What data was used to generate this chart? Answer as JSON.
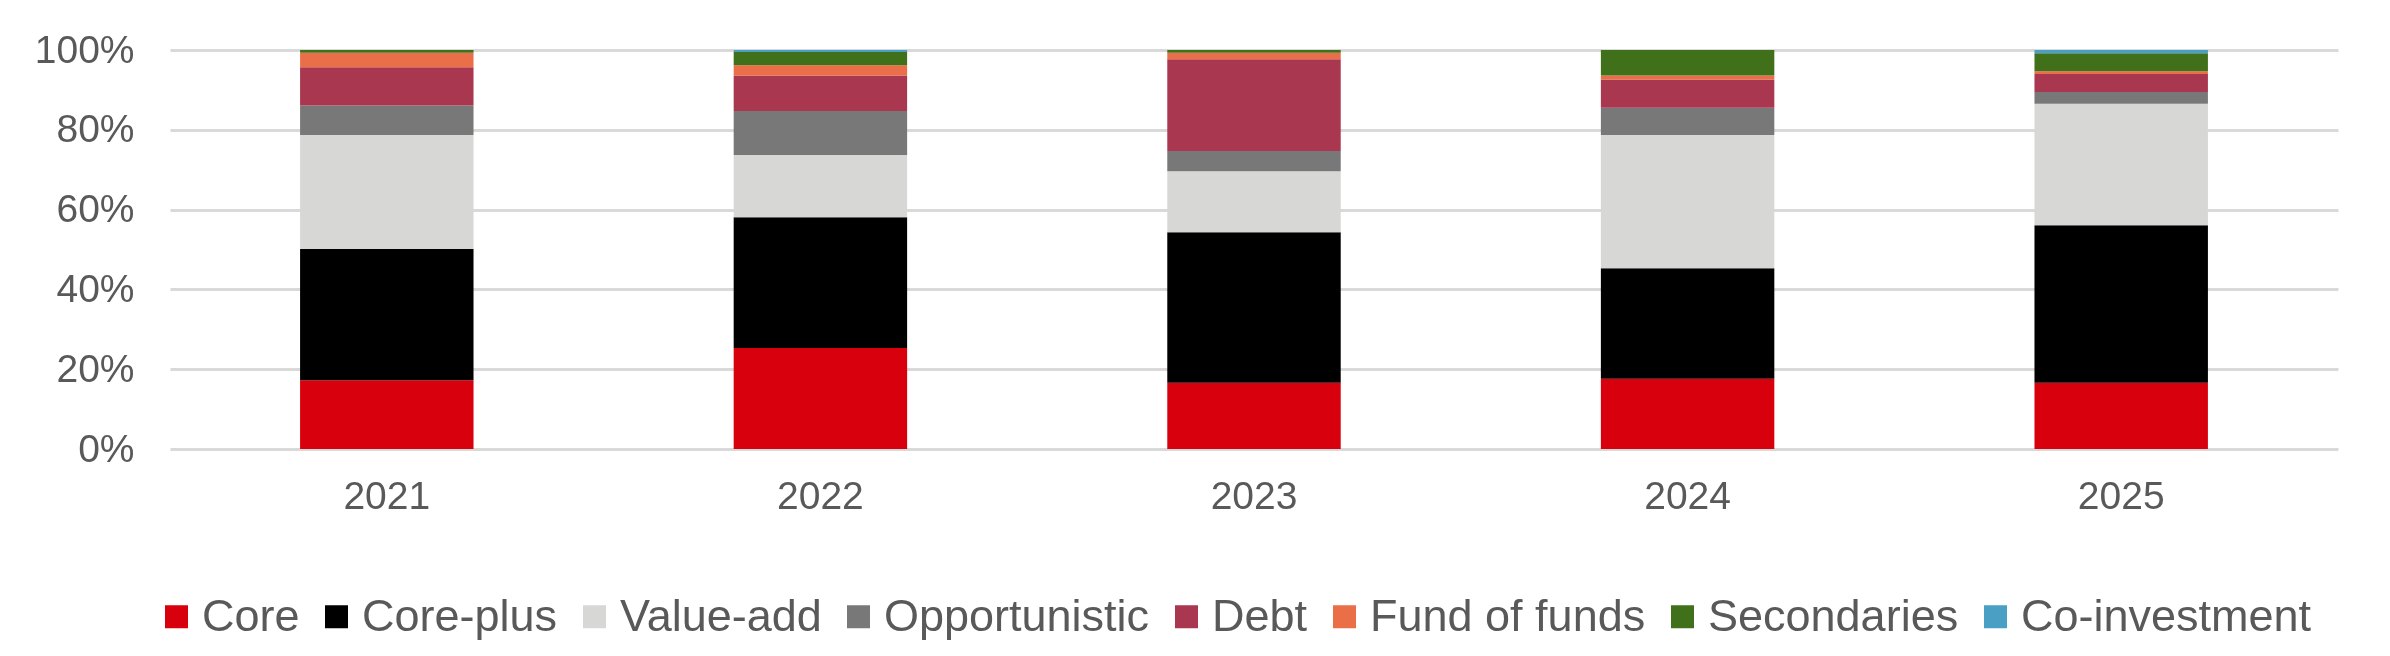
{
  "chart_data": {
    "type": "bar",
    "stacked": true,
    "grid": "y",
    "legend": "bottom",
    "categories": [
      "2021",
      "2022",
      "2023",
      "2024",
      "2025"
    ],
    "ylim": [
      0,
      100
    ],
    "yticks": [
      {
        "value": 0,
        "label": "0%"
      },
      {
        "value": 20,
        "label": "20%"
      },
      {
        "value": 40,
        "label": "40%"
      },
      {
        "value": 60,
        "label": "60%"
      },
      {
        "value": 80,
        "label": "80%"
      },
      {
        "value": 100,
        "label": "100%"
      }
    ],
    "series": [
      {
        "name": "Core",
        "color": "#d9000d",
        "values": [
          17.2,
          25.3,
          16.6,
          17.6,
          16.6
        ]
      },
      {
        "name": "Core-plus",
        "color": "#000000",
        "values": [
          32.9,
          32.8,
          37.7,
          27.7,
          39.5
        ]
      },
      {
        "name": "Value-add",
        "color": "#d7d7d5",
        "values": [
          28.6,
          15.6,
          15.3,
          33.4,
          30.4
        ]
      },
      {
        "name": "Opportunistic",
        "color": "#787878",
        "values": [
          7.4,
          11.0,
          5.1,
          6.8,
          3.0
        ]
      },
      {
        "name": "Debt",
        "color": "#a9374f",
        "values": [
          9.6,
          8.9,
          23.0,
          7.1,
          4.5
        ]
      },
      {
        "name": "Fund of funds",
        "color": "#ea6f48",
        "values": [
          3.6,
          2.6,
          1.6,
          1.0,
          0.7
        ]
      },
      {
        "name": "Secondaries",
        "color": "#41701b",
        "values": [
          0.7,
          3.3,
          0.7,
          6.4,
          4.5
        ]
      },
      {
        "name": "Co-investment",
        "color": "#4a9fc4",
        "values": [
          0,
          0.5,
          0,
          0,
          0.8
        ]
      }
    ]
  }
}
